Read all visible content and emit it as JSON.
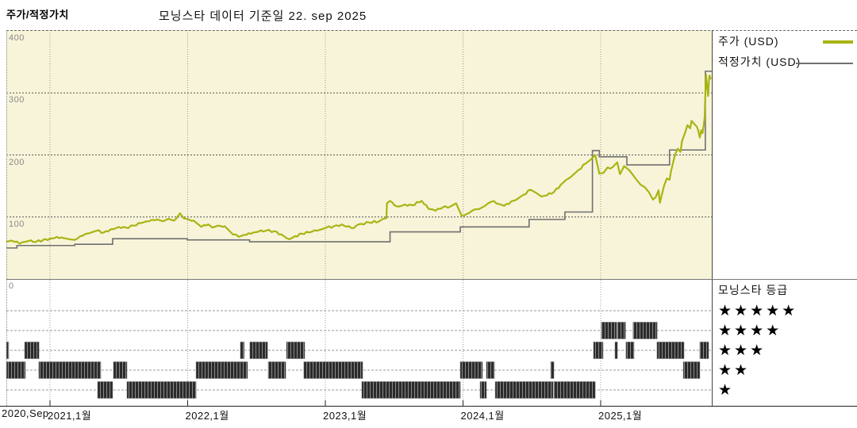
{
  "header": {
    "left_title": "주가/적정가치",
    "center_title": "모닝스타 데이터 기준일 22. sep 2025"
  },
  "legend": {
    "price_label": "주가 (USD)",
    "fair_value_label": "적정가치 (USD)"
  },
  "rating_legend": {
    "title": "모닝스타 등급",
    "rows": [
      {
        "level": 5,
        "stars": "★★★★★"
      },
      {
        "level": 4,
        "stars": "★★★★"
      },
      {
        "level": 3,
        "stars": "★★★"
      },
      {
        "level": 2,
        "stars": "★★"
      },
      {
        "level": 1,
        "stars": "★"
      }
    ]
  },
  "colors": {
    "price": "#a9b412",
    "fair_value": "#6f6f6f",
    "plot_bg": "#f7f4d9",
    "grid_h": "#555555",
    "grid_v": "#9b9b8d",
    "rating_grid": "#999999",
    "bars": "#2b2b2b"
  },
  "chart_data": {
    "type": "line",
    "title": "주가/적정가치",
    "subtitle": "모닝스타 데이터 기준일 22. sep 2025",
    "xlabel": "",
    "ylabel": "USD",
    "x_range": [
      2020.68,
      2025.81
    ],
    "ylim": [
      0,
      400
    ],
    "grid": true,
    "legend_position": "right",
    "y_ticks": [
      {
        "v": 400,
        "label": "400"
      },
      {
        "v": 300,
        "label": "300"
      },
      {
        "v": 200,
        "label": "200"
      },
      {
        "v": 100,
        "label": "100"
      },
      {
        "v": 0,
        "label": "0"
      }
    ],
    "x_ticks": [
      {
        "t": 2020.69,
        "label": "2020,Sep",
        "grid": false
      },
      {
        "t": 2021.0,
        "label": "2021,1월",
        "grid": true
      },
      {
        "t": 2022.0,
        "label": "2022,1월",
        "grid": true
      },
      {
        "t": 2023.0,
        "label": "2023,1월",
        "grid": true
      },
      {
        "t": 2024.0,
        "label": "2024,1월",
        "grid": true
      },
      {
        "t": 2025.0,
        "label": "2025,1월",
        "grid": true
      }
    ],
    "series": [
      {
        "name": "주가 (USD)",
        "type": "line",
        "color": "#a9b412",
        "points": [
          [
            2020.683,
            60
          ],
          [
            2020.72,
            62
          ],
          [
            2020.78,
            57
          ],
          [
            2020.84,
            61
          ],
          [
            2020.9,
            60
          ],
          [
            2020.95,
            63
          ],
          [
            2021.0,
            65
          ],
          [
            2021.05,
            68
          ],
          [
            2021.1,
            66
          ],
          [
            2021.14,
            64
          ],
          [
            2021.18,
            63
          ],
          [
            2021.24,
            70
          ],
          [
            2021.3,
            75
          ],
          [
            2021.34,
            78
          ],
          [
            2021.39,
            75
          ],
          [
            2021.44,
            80
          ],
          [
            2021.5,
            84
          ],
          [
            2021.55,
            83
          ],
          [
            2021.61,
            86
          ],
          [
            2021.66,
            90
          ],
          [
            2021.72,
            93
          ],
          [
            2021.78,
            96
          ],
          [
            2021.82,
            93
          ],
          [
            2021.86,
            97
          ],
          [
            2021.9,
            94
          ],
          [
            2021.945,
            106
          ],
          [
            2021.97,
            98
          ],
          [
            2022.01,
            96
          ],
          [
            2022.06,
            91
          ],
          [
            2022.1,
            84
          ],
          [
            2022.15,
            88
          ],
          [
            2022.18,
            83
          ],
          [
            2022.22,
            86
          ],
          [
            2022.27,
            85
          ],
          [
            2022.31,
            76
          ],
          [
            2022.37,
            68
          ],
          [
            2022.41,
            71
          ],
          [
            2022.46,
            73
          ],
          [
            2022.51,
            76
          ],
          [
            2022.57,
            78
          ],
          [
            2022.63,
            77
          ],
          [
            2022.68,
            72
          ],
          [
            2022.74,
            64
          ],
          [
            2022.78,
            69
          ],
          [
            2022.83,
            73
          ],
          [
            2022.88,
            75
          ],
          [
            2022.94,
            78
          ],
          [
            2022.97,
            80
          ],
          [
            2023.01,
            83
          ],
          [
            2023.06,
            85
          ],
          [
            2023.12,
            88
          ],
          [
            2023.19,
            82
          ],
          [
            2023.26,
            89
          ],
          [
            2023.32,
            91
          ],
          [
            2023.39,
            93
          ],
          [
            2023.42,
            97
          ],
          [
            2023.444,
            98
          ],
          [
            2023.447,
            122
          ],
          [
            2023.47,
            126
          ],
          [
            2023.52,
            117
          ],
          [
            2023.58,
            120
          ],
          [
            2023.63,
            119
          ],
          [
            2023.7,
            126
          ],
          [
            2023.75,
            113
          ],
          [
            2023.8,
            110
          ],
          [
            2023.85,
            115
          ],
          [
            2023.91,
            117
          ],
          [
            2023.95,
            122
          ],
          [
            2023.99,
            102
          ],
          [
            2024.04,
            106
          ],
          [
            2024.08,
            112
          ],
          [
            2024.12,
            113
          ],
          [
            2024.16,
            118
          ],
          [
            2024.21,
            125
          ],
          [
            2024.26,
            121
          ],
          [
            2024.3,
            118
          ],
          [
            2024.35,
            125
          ],
          [
            2024.4,
            130
          ],
          [
            2024.44,
            136
          ],
          [
            2024.49,
            144
          ],
          [
            2024.53,
            139
          ],
          [
            2024.57,
            133
          ],
          [
            2024.61,
            135
          ],
          [
            2024.66,
            140
          ],
          [
            2024.71,
            152
          ],
          [
            2024.75,
            160
          ],
          [
            2024.8,
            168
          ],
          [
            2024.84,
            176
          ],
          [
            2024.89,
            186
          ],
          [
            2024.93,
            193
          ],
          [
            2024.96,
            200
          ],
          [
            2024.99,
            170
          ],
          [
            2025.02,
            171
          ],
          [
            2025.05,
            180
          ],
          [
            2025.07,
            178
          ],
          [
            2025.12,
            188
          ],
          [
            2025.14,
            169
          ],
          [
            2025.17,
            182
          ],
          [
            2025.21,
            175
          ],
          [
            2025.25,
            163
          ],
          [
            2025.29,
            152
          ],
          [
            2025.32,
            148
          ],
          [
            2025.35,
            140
          ],
          [
            2025.38,
            128
          ],
          [
            2025.4,
            132
          ],
          [
            2025.42,
            143
          ],
          [
            2025.43,
            123
          ],
          [
            2025.46,
            150
          ],
          [
            2025.48,
            162
          ],
          [
            2025.5,
            160
          ],
          [
            2025.51,
            173
          ],
          [
            2025.54,
            201
          ],
          [
            2025.56,
            210
          ],
          [
            2025.58,
            205
          ],
          [
            2025.59,
            222
          ],
          [
            2025.61,
            234
          ],
          [
            2025.63,
            248
          ],
          [
            2025.65,
            243
          ],
          [
            2025.66,
            255
          ],
          [
            2025.68,
            250
          ],
          [
            2025.7,
            245
          ],
          [
            2025.71,
            238
          ],
          [
            2025.72,
            228
          ],
          [
            2025.73,
            240
          ],
          [
            2025.74,
            235
          ],
          [
            2025.755,
            260
          ],
          [
            2025.76,
            300
          ],
          [
            2025.765,
            330
          ],
          [
            2025.77,
            318
          ],
          [
            2025.78,
            295
          ],
          [
            2025.785,
            315
          ],
          [
            2025.79,
            328
          ],
          [
            2025.8,
            322
          ]
        ]
      },
      {
        "name": "적정가치 (USD)",
        "type": "step",
        "color": "#6f6f6f",
        "points": [
          [
            2020.683,
            50
          ],
          [
            2020.76,
            54
          ],
          [
            2021.18,
            56
          ],
          [
            2021.455,
            65
          ],
          [
            2021.997,
            63
          ],
          [
            2022.45,
            60
          ],
          [
            2023.47,
            76
          ],
          [
            2023.98,
            84
          ],
          [
            2024.48,
            96
          ],
          [
            2024.74,
            108
          ],
          [
            2024.94,
            207
          ],
          [
            2024.99,
            197
          ],
          [
            2025.19,
            184
          ],
          [
            2025.5,
            208
          ],
          [
            2025.76,
            335
          ],
          [
            2025.8,
            335
          ]
        ]
      }
    ],
    "ratings": {
      "name": "모닝스타 등급",
      "rows": [
        {
          "stars": 5,
          "segments": []
        },
        {
          "stars": 4,
          "segments": [
            [
              2025.005,
              2025.115
            ],
            [
              2025.12,
              2025.18
            ],
            [
              2025.235,
              2025.41
            ]
          ]
        },
        {
          "stars": 3,
          "segments": [
            [
              2020.683,
              2020.7
            ],
            [
              2020.816,
              2020.92
            ],
            [
              2022.383,
              2022.41
            ],
            [
              2022.452,
              2022.58
            ],
            [
              2022.718,
              2022.85
            ],
            [
              2024.948,
              2025.017
            ],
            [
              2025.104,
              2025.121
            ],
            [
              2025.184,
              2025.242
            ],
            [
              2025.409,
              2025.605
            ],
            [
              2025.72,
              2025.784
            ]
          ]
        },
        {
          "stars": 2,
          "segments": [
            [
              2020.683,
              2020.821
            ],
            [
              2020.919,
              2021.369
            ],
            [
              2021.461,
              2021.559
            ],
            [
              2022.061,
              2022.435
            ],
            [
              2022.585,
              2022.712
            ],
            [
              2022.844,
              2023.271
            ],
            [
              2023.98,
              2024.141
            ],
            [
              2024.17,
              2024.228
            ],
            [
              2024.637,
              2024.66
            ],
            [
              2025.6,
              2025.72
            ]
          ]
        },
        {
          "stars": 1,
          "segments": [
            [
              2021.346,
              2021.455
            ],
            [
              2021.559,
              2022.061
            ],
            [
              2023.265,
              2023.98
            ],
            [
              2024.124,
              2024.17
            ],
            [
              2024.234,
              2024.654
            ],
            [
              2024.66,
              2024.96
            ]
          ]
        }
      ]
    }
  }
}
